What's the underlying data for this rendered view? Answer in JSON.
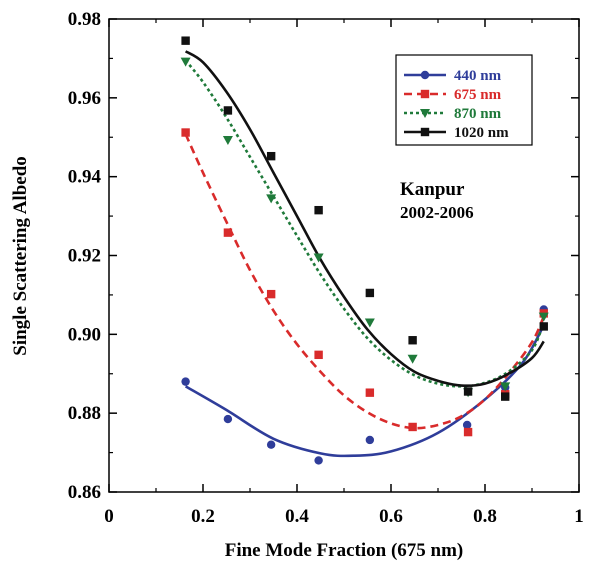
{
  "chart_data": {
    "type": "scatter",
    "xlabel": "Fine Mode Fraction (675 nm)",
    "ylabel": "Single Scattering Albedo",
    "xlim": [
      0,
      1
    ],
    "ylim": [
      0.86,
      0.98
    ],
    "x_ticks": [
      "0",
      "0.2",
      "0.4",
      "0.6",
      "0.8",
      "1"
    ],
    "y_ticks": [
      "0.86",
      "0.88",
      "0.90",
      "0.92",
      "0.94",
      "0.96",
      "0.98"
    ],
    "legend_position": "top-right",
    "grid": false,
    "annotations": [
      "Kanpur",
      "2002-2006"
    ],
    "series": [
      {
        "name": "440 nm",
        "color": "#2f3d9a",
        "marker": "circle",
        "line_style": "solid",
        "x": [
          0.163,
          0.253,
          0.345,
          0.446,
          0.555,
          0.762,
          0.843,
          0.925
        ],
        "y": [
          0.888,
          0.8785,
          0.872,
          0.868,
          0.8732,
          0.877,
          0.8865,
          0.9063
        ],
        "fit": [
          [
            0.163,
            0.8868
          ],
          [
            0.25,
            0.8808
          ],
          [
            0.35,
            0.8735
          ],
          [
            0.45,
            0.8698
          ],
          [
            0.52,
            0.8692
          ],
          [
            0.6,
            0.8703
          ],
          [
            0.7,
            0.875
          ],
          [
            0.8,
            0.8835
          ],
          [
            0.88,
            0.8928
          ],
          [
            0.925,
            0.9023
          ]
        ]
      },
      {
        "name": "675 nm",
        "color": "#d92b2b",
        "marker": "square",
        "line_style": "dashed",
        "x": [
          0.163,
          0.253,
          0.345,
          0.446,
          0.555,
          0.646,
          0.764,
          0.843,
          0.925
        ],
        "y": [
          0.9512,
          0.9258,
          0.9102,
          0.8948,
          0.8852,
          0.8765,
          0.8752,
          0.8848,
          0.9053
        ],
        "fit": [
          [
            0.163,
            0.9508
          ],
          [
            0.2,
            0.941
          ],
          [
            0.25,
            0.9285
          ],
          [
            0.3,
            0.9163
          ],
          [
            0.35,
            0.906
          ],
          [
            0.4,
            0.8975
          ],
          [
            0.45,
            0.8905
          ],
          [
            0.5,
            0.8845
          ],
          [
            0.55,
            0.8802
          ],
          [
            0.6,
            0.8774
          ],
          [
            0.65,
            0.8762
          ],
          [
            0.7,
            0.877
          ],
          [
            0.75,
            0.8792
          ],
          [
            0.8,
            0.8835
          ],
          [
            0.85,
            0.89
          ],
          [
            0.9,
            0.898
          ],
          [
            0.925,
            0.9045
          ]
        ]
      },
      {
        "name": "870 nm",
        "color": "#1f7a3a",
        "marker": "triangle-down",
        "line_style": "dotted",
        "x": [
          0.163,
          0.253,
          0.345,
          0.446,
          0.555,
          0.646,
          0.764,
          0.843,
          0.925
        ],
        "y": [
          0.9692,
          0.9493,
          0.9345,
          0.9195,
          0.903,
          0.8938,
          0.8853,
          0.8868,
          0.9045
        ],
        "fit": [
          [
            0.163,
            0.9695
          ],
          [
            0.2,
            0.964
          ],
          [
            0.25,
            0.955
          ],
          [
            0.3,
            0.945
          ],
          [
            0.35,
            0.935
          ],
          [
            0.4,
            0.925
          ],
          [
            0.45,
            0.9152
          ],
          [
            0.5,
            0.9065
          ],
          [
            0.55,
            0.899
          ],
          [
            0.6,
            0.8935
          ],
          [
            0.65,
            0.8896
          ],
          [
            0.7,
            0.8875
          ],
          [
            0.75,
            0.8868
          ],
          [
            0.8,
            0.8877
          ],
          [
            0.85,
            0.8905
          ],
          [
            0.9,
            0.896
          ],
          [
            0.925,
            0.903
          ]
        ]
      },
      {
        "name": "1020 nm",
        "color": "#111111",
        "marker": "square",
        "line_style": "solid",
        "x": [
          0.163,
          0.253,
          0.345,
          0.446,
          0.555,
          0.646,
          0.764,
          0.843,
          0.925
        ],
        "y": [
          0.9745,
          0.9568,
          0.9452,
          0.9315,
          0.9105,
          0.8985,
          0.8855,
          0.8842,
          0.902
        ],
        "fit": [
          [
            0.163,
            0.9718
          ],
          [
            0.2,
            0.969
          ],
          [
            0.25,
            0.9615
          ],
          [
            0.3,
            0.952
          ],
          [
            0.35,
            0.941
          ],
          [
            0.4,
            0.93
          ],
          [
            0.45,
            0.919
          ],
          [
            0.5,
            0.9095
          ],
          [
            0.55,
            0.9012
          ],
          [
            0.6,
            0.895
          ],
          [
            0.65,
            0.8905
          ],
          [
            0.7,
            0.8882
          ],
          [
            0.75,
            0.887
          ],
          [
            0.8,
            0.8875
          ],
          [
            0.85,
            0.89
          ],
          [
            0.9,
            0.894
          ],
          [
            0.925,
            0.8982
          ]
        ]
      }
    ]
  }
}
